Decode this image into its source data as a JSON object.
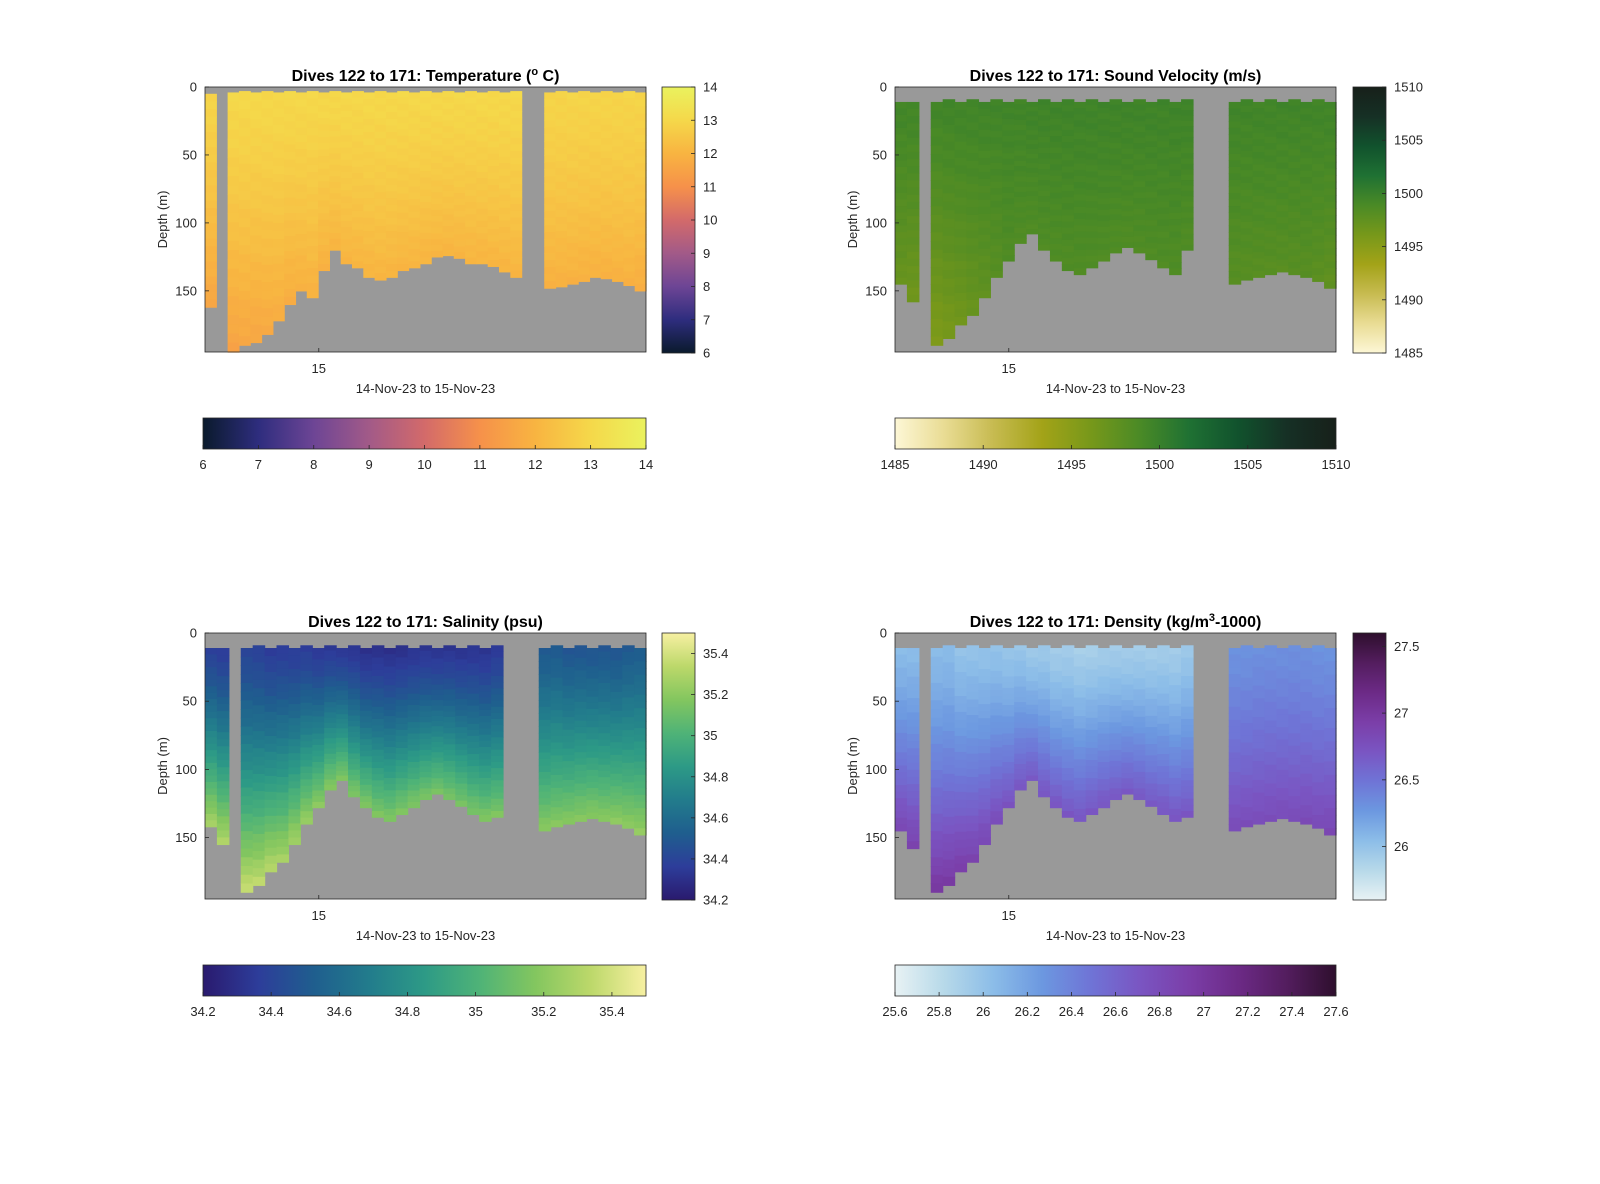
{
  "chart_data": [
    {
      "type": "heatmap",
      "title": "Dives 122 to 171: Temperature (° C)",
      "title_parts": [
        "Dives 122 to 171: Temperature (",
        "o",
        " C)"
      ],
      "xlabel": "14-Nov-23 to 15-Nov-23",
      "ylabel": "Depth (m)",
      "x_tick_labels": [
        "15"
      ],
      "y_ticks": [
        0,
        50,
        100,
        150
      ],
      "ylim": [
        0,
        195
      ],
      "colorbar_range": [
        6,
        14
      ],
      "colorbar_ticks": [
        6,
        7,
        8,
        9,
        10,
        11,
        12,
        13,
        14
      ],
      "horizontal_colorbar_ticks": [
        6,
        7,
        8,
        9,
        10,
        11,
        12,
        13,
        14
      ],
      "colormap": [
        "#0a1a2c",
        "#2e2d7e",
        "#6d4595",
        "#a25a88",
        "#d36a6a",
        "#f6914a",
        "#f8b441",
        "#f5d84a",
        "#eaf25e"
      ],
      "surface_value": 13.0,
      "bottom_value": 12.0,
      "dives": [
        {
          "top": 5,
          "bottom": 162,
          "s": 12.9,
          "b": 11.6
        },
        {
          "gap": true
        },
        {
          "top": 4,
          "bottom": 195,
          "s": 13.0,
          "b": 11.5
        },
        {
          "top": 3,
          "bottom": 190,
          "s": 13.0,
          "b": 11.6
        },
        {
          "top": 4,
          "bottom": 188,
          "s": 13.0,
          "b": 11.6
        },
        {
          "top": 3,
          "bottom": 182,
          "s": 13.0,
          "b": 11.7
        },
        {
          "top": 4,
          "bottom": 172,
          "s": 13.0,
          "b": 11.8
        },
        {
          "top": 3,
          "bottom": 160,
          "s": 13.0,
          "b": 11.8
        },
        {
          "top": 4,
          "bottom": 150,
          "s": 13.0,
          "b": 11.9
        },
        {
          "top": 3,
          "bottom": 155,
          "s": 13.0,
          "b": 11.9
        },
        {
          "top": 4,
          "bottom": 135,
          "s": 13.0,
          "b": 11.9
        },
        {
          "top": 3,
          "bottom": 120,
          "s": 13.0,
          "b": 12.0
        },
        {
          "top": 4,
          "bottom": 130,
          "s": 13.0,
          "b": 12.0
        },
        {
          "top": 3,
          "bottom": 133,
          "s": 13.0,
          "b": 12.0
        },
        {
          "top": 4,
          "bottom": 140,
          "s": 13.0,
          "b": 12.0
        },
        {
          "top": 3,
          "bottom": 142,
          "s": 13.0,
          "b": 12.0
        },
        {
          "top": 4,
          "bottom": 140,
          "s": 13.0,
          "b": 12.0
        },
        {
          "top": 3,
          "bottom": 135,
          "s": 13.0,
          "b": 12.0
        },
        {
          "top": 4,
          "bottom": 133,
          "s": 13.0,
          "b": 12.0
        },
        {
          "top": 3,
          "bottom": 130,
          "s": 13.0,
          "b": 12.0
        },
        {
          "top": 4,
          "bottom": 125,
          "s": 13.0,
          "b": 12.0
        },
        {
          "top": 3,
          "bottom": 124,
          "s": 13.0,
          "b": 12.0
        },
        {
          "top": 4,
          "bottom": 126,
          "s": 13.0,
          "b": 12.0
        },
        {
          "top": 3,
          "bottom": 130,
          "s": 13.0,
          "b": 12.0
        },
        {
          "top": 4,
          "bottom": 130,
          "s": 13.0,
          "b": 12.0
        },
        {
          "top": 3,
          "bottom": 132,
          "s": 13.0,
          "b": 12.0
        },
        {
          "top": 4,
          "bottom": 136,
          "s": 13.0,
          "b": 12.0
        },
        {
          "top": 3,
          "bottom": 140,
          "s": 13.0,
          "b": 12.0
        },
        {
          "gap": true
        },
        {
          "gap": true
        },
        {
          "top": 4,
          "bottom": 148,
          "s": 12.9,
          "b": 11.9
        },
        {
          "top": 3,
          "bottom": 147,
          "s": 12.9,
          "b": 11.9
        },
        {
          "top": 4,
          "bottom": 145,
          "s": 12.9,
          "b": 11.9
        },
        {
          "top": 3,
          "bottom": 143,
          "s": 12.9,
          "b": 11.9
        },
        {
          "top": 4,
          "bottom": 140,
          "s": 12.9,
          "b": 11.9
        },
        {
          "top": 3,
          "bottom": 141,
          "s": 12.9,
          "b": 11.9
        },
        {
          "top": 4,
          "bottom": 143,
          "s": 12.9,
          "b": 11.9
        },
        {
          "top": 3,
          "bottom": 146,
          "s": 12.9,
          "b": 11.9
        },
        {
          "top": 4,
          "bottom": 150,
          "s": 12.9,
          "b": 11.8
        }
      ]
    },
    {
      "type": "heatmap",
      "title": "Dives 122 to 171: Sound Velocity (m/s)",
      "title_parts": [
        "Dives 122 to 171: Sound Velocity (m/s)"
      ],
      "xlabel": "14-Nov-23 to 15-Nov-23",
      "ylabel": "Depth (m)",
      "x_tick_labels": [
        "15"
      ],
      "y_ticks": [
        0,
        50,
        100,
        150
      ],
      "ylim": [
        0,
        195
      ],
      "colorbar_range": [
        1485,
        1510
      ],
      "colorbar_ticks": [
        1485,
        1490,
        1495,
        1500,
        1505,
        1510
      ],
      "horizontal_colorbar_ticks": [
        1485,
        1490,
        1495,
        1500,
        1505,
        1510
      ],
      "colormap": [
        "#fdf7d6",
        "#e9dc94",
        "#c7bb51",
        "#a3a318",
        "#77981a",
        "#4a8a26",
        "#1f7133",
        "#11522d",
        "#163025",
        "#17201a"
      ],
      "dives": [
        {
          "top": 11,
          "bottom": 145,
          "s": 1499.4,
          "b": 1497.0
        },
        {
          "top": 11,
          "bottom": 158,
          "s": 1499.4,
          "b": 1496.5
        },
        {
          "gap": true
        },
        {
          "top": 11,
          "bottom": 190,
          "s": 1499.4,
          "b": 1495.5
        },
        {
          "top": 9,
          "bottom": 185,
          "s": 1499.5,
          "b": 1496.0
        },
        {
          "top": 11,
          "bottom": 175,
          "s": 1499.5,
          "b": 1496.5
        },
        {
          "top": 9,
          "bottom": 168,
          "s": 1499.5,
          "b": 1497.0
        },
        {
          "top": 11,
          "bottom": 155,
          "s": 1499.5,
          "b": 1497.5
        },
        {
          "top": 9,
          "bottom": 140,
          "s": 1499.5,
          "b": 1498.0
        },
        {
          "top": 11,
          "bottom": 128,
          "s": 1499.5,
          "b": 1498.5
        },
        {
          "top": 9,
          "bottom": 115,
          "s": 1499.5,
          "b": 1498.5
        },
        {
          "top": 11,
          "bottom": 108,
          "s": 1499.6,
          "b": 1498.5
        },
        {
          "top": 9,
          "bottom": 120,
          "s": 1499.6,
          "b": 1498.5
        },
        {
          "top": 11,
          "bottom": 128,
          "s": 1499.6,
          "b": 1498.5
        },
        {
          "top": 9,
          "bottom": 135,
          "s": 1499.6,
          "b": 1498.5
        },
        {
          "top": 11,
          "bottom": 138,
          "s": 1499.6,
          "b": 1498.5
        },
        {
          "top": 9,
          "bottom": 133,
          "s": 1499.6,
          "b": 1498.5
        },
        {
          "top": 11,
          "bottom": 128,
          "s": 1499.6,
          "b": 1498.5
        },
        {
          "top": 9,
          "bottom": 122,
          "s": 1499.6,
          "b": 1498.5
        },
        {
          "top": 11,
          "bottom": 118,
          "s": 1499.6,
          "b": 1498.5
        },
        {
          "top": 9,
          "bottom": 122,
          "s": 1499.6,
          "b": 1498.5
        },
        {
          "top": 11,
          "bottom": 127,
          "s": 1499.6,
          "b": 1498.5
        },
        {
          "top": 9,
          "bottom": 133,
          "s": 1499.6,
          "b": 1498.5
        },
        {
          "top": 11,
          "bottom": 138,
          "s": 1499.6,
          "b": 1498.5
        },
        {
          "top": 9,
          "bottom": 120,
          "s": 1499.6,
          "b": 1498.5
        },
        {
          "gap": true
        },
        {
          "gap": true
        },
        {
          "gap": true
        },
        {
          "top": 11,
          "bottom": 145,
          "s": 1499.5,
          "b": 1498.0
        },
        {
          "top": 9,
          "bottom": 142,
          "s": 1499.5,
          "b": 1498.0
        },
        {
          "top": 11,
          "bottom": 140,
          "s": 1499.5,
          "b": 1498.0
        },
        {
          "top": 9,
          "bottom": 138,
          "s": 1499.5,
          "b": 1498.0
        },
        {
          "top": 11,
          "bottom": 136,
          "s": 1499.5,
          "b": 1498.0
        },
        {
          "top": 9,
          "bottom": 138,
          "s": 1499.5,
          "b": 1498.0
        },
        {
          "top": 11,
          "bottom": 140,
          "s": 1499.5,
          "b": 1498.0
        },
        {
          "top": 9,
          "bottom": 143,
          "s": 1499.5,
          "b": 1497.8
        },
        {
          "top": 11,
          "bottom": 148,
          "s": 1499.5,
          "b": 1497.5
        }
      ]
    },
    {
      "type": "heatmap",
      "title": "Dives 122 to 171: Salinity (psu)",
      "title_parts": [
        "Dives 122 to 171: Salinity (psu)"
      ],
      "xlabel": "14-Nov-23 to 15-Nov-23",
      "ylabel": "Depth (m)",
      "x_tick_labels": [
        "15"
      ],
      "y_ticks": [
        0,
        50,
        100,
        150
      ],
      "ylim": [
        0,
        195
      ],
      "colorbar_range": [
        34.2,
        35.5
      ],
      "colorbar_ticks": [
        34.2,
        34.4,
        34.6,
        34.8,
        35,
        35.2,
        35.4
      ],
      "colorbar_tick_labels": [
        "34.2",
        "34.4",
        "34.6",
        "34.8",
        "35",
        "35.2",
        "35.4"
      ],
      "colormap": [
        "#2a1a6e",
        "#2d3d9a",
        "#1f5e8e",
        "#227c8c",
        "#2d9a86",
        "#4fb377",
        "#83c65f",
        "#bcd86a",
        "#f7f0a2"
      ],
      "dives": [
        {
          "top": 11,
          "bottom": 142,
          "s": 34.38,
          "b": 35.3
        },
        {
          "top": 11,
          "bottom": 155,
          "s": 34.36,
          "b": 35.32
        },
        {
          "gap": true
        },
        {
          "top": 11,
          "bottom": 190,
          "s": 34.4,
          "b": 35.38
        },
        {
          "top": 9,
          "bottom": 185,
          "s": 34.38,
          "b": 35.36
        },
        {
          "top": 11,
          "bottom": 175,
          "s": 34.36,
          "b": 35.34
        },
        {
          "top": 9,
          "bottom": 168,
          "s": 34.36,
          "b": 35.3
        },
        {
          "top": 11,
          "bottom": 155,
          "s": 34.36,
          "b": 35.28
        },
        {
          "top": 9,
          "bottom": 140,
          "s": 34.36,
          "b": 35.25
        },
        {
          "top": 11,
          "bottom": 128,
          "s": 34.34,
          "b": 35.22
        },
        {
          "top": 9,
          "bottom": 115,
          "s": 34.34,
          "b": 35.2
        },
        {
          "top": 11,
          "bottom": 108,
          "s": 34.34,
          "b": 35.18
        },
        {
          "top": 9,
          "bottom": 120,
          "s": 34.32,
          "b": 35.18
        },
        {
          "top": 11,
          "bottom": 128,
          "s": 34.3,
          "b": 35.18
        },
        {
          "top": 9,
          "bottom": 135,
          "s": 34.3,
          "b": 35.18
        },
        {
          "top": 11,
          "bottom": 138,
          "s": 34.3,
          "b": 35.18
        },
        {
          "top": 9,
          "bottom": 133,
          "s": 34.3,
          "b": 35.18
        },
        {
          "top": 11,
          "bottom": 128,
          "s": 34.32,
          "b": 35.18
        },
        {
          "top": 9,
          "bottom": 122,
          "s": 34.32,
          "b": 35.16
        },
        {
          "top": 11,
          "bottom": 118,
          "s": 34.32,
          "b": 35.16
        },
        {
          "top": 9,
          "bottom": 122,
          "s": 34.32,
          "b": 35.16
        },
        {
          "top": 11,
          "bottom": 127,
          "s": 34.32,
          "b": 35.16
        },
        {
          "top": 9,
          "bottom": 133,
          "s": 34.32,
          "b": 35.16
        },
        {
          "top": 11,
          "bottom": 138,
          "s": 34.32,
          "b": 35.18
        },
        {
          "top": 9,
          "bottom": 135,
          "s": 34.34,
          "b": 35.18
        },
        {
          "gap": true
        },
        {
          "gap": true
        },
        {
          "gap": true
        },
        {
          "top": 11,
          "bottom": 145,
          "s": 34.5,
          "b": 35.2
        },
        {
          "top": 9,
          "bottom": 142,
          "s": 34.5,
          "b": 35.2
        },
        {
          "top": 11,
          "bottom": 140,
          "s": 34.48,
          "b": 35.2
        },
        {
          "top": 9,
          "bottom": 138,
          "s": 34.48,
          "b": 35.2
        },
        {
          "top": 11,
          "bottom": 136,
          "s": 34.48,
          "b": 35.2
        },
        {
          "top": 9,
          "bottom": 138,
          "s": 34.48,
          "b": 35.2
        },
        {
          "top": 11,
          "bottom": 140,
          "s": 34.48,
          "b": 35.22
        },
        {
          "top": 9,
          "bottom": 143,
          "s": 34.5,
          "b": 35.22
        },
        {
          "top": 11,
          "bottom": 148,
          "s": 34.52,
          "b": 35.24
        }
      ]
    },
    {
      "type": "heatmap",
      "title": "Dives 122 to 171: Density (kg/m³-1000)",
      "title_parts": [
        "Dives 122 to 171: Density (kg/m",
        "3",
        "-1000)"
      ],
      "xlabel": "14-Nov-23 to 15-Nov-23",
      "ylabel": "Depth (m)",
      "x_tick_labels": [
        "15"
      ],
      "y_ticks": [
        0,
        50,
        100,
        150
      ],
      "ylim": [
        0,
        195
      ],
      "colorbar_range": [
        25.6,
        27.6
      ],
      "colorbar_ticks": [
        26,
        26.5,
        27,
        27.5
      ],
      "horizontal_colorbar_ticks": [
        25.6,
        25.8,
        26,
        26.2,
        26.4,
        26.6,
        26.8,
        27,
        27.2,
        27.4,
        27.6
      ],
      "colormap": [
        "#e8f2f4",
        "#b7d9e9",
        "#8cbde8",
        "#6c98e0",
        "#6f74d6",
        "#7a55c2",
        "#7b3ea8",
        "#6c2a86",
        "#531d5e",
        "#2e0f2d"
      ],
      "dives": [
        {
          "top": 11,
          "bottom": 145,
          "s": 26.05,
          "b": 26.85
        },
        {
          "top": 11,
          "bottom": 158,
          "s": 26.05,
          "b": 26.9
        },
        {
          "gap": true
        },
        {
          "top": 11,
          "bottom": 190,
          "s": 26.05,
          "b": 27.0
        },
        {
          "top": 9,
          "bottom": 185,
          "s": 26.05,
          "b": 26.98
        },
        {
          "top": 11,
          "bottom": 175,
          "s": 26.0,
          "b": 26.95
        },
        {
          "top": 9,
          "bottom": 168,
          "s": 26.0,
          "b": 26.9
        },
        {
          "top": 11,
          "bottom": 155,
          "s": 26.0,
          "b": 26.85
        },
        {
          "top": 9,
          "bottom": 140,
          "s": 26.0,
          "b": 26.8
        },
        {
          "top": 11,
          "bottom": 128,
          "s": 25.98,
          "b": 26.75
        },
        {
          "top": 9,
          "bottom": 115,
          "s": 25.98,
          "b": 26.72
        },
        {
          "top": 11,
          "bottom": 108,
          "s": 25.95,
          "b": 26.7
        },
        {
          "top": 9,
          "bottom": 120,
          "s": 25.95,
          "b": 26.72
        },
        {
          "top": 11,
          "bottom": 128,
          "s": 25.92,
          "b": 26.72
        },
        {
          "top": 9,
          "bottom": 135,
          "s": 25.92,
          "b": 26.72
        },
        {
          "top": 11,
          "bottom": 138,
          "s": 25.9,
          "b": 26.72
        },
        {
          "top": 9,
          "bottom": 133,
          "s": 25.9,
          "b": 26.72
        },
        {
          "top": 11,
          "bottom": 128,
          "s": 25.92,
          "b": 26.72
        },
        {
          "top": 9,
          "bottom": 122,
          "s": 25.92,
          "b": 26.7
        },
        {
          "top": 11,
          "bottom": 118,
          "s": 25.92,
          "b": 26.7
        },
        {
          "top": 9,
          "bottom": 122,
          "s": 25.92,
          "b": 26.7
        },
        {
          "top": 11,
          "bottom": 127,
          "s": 25.92,
          "b": 26.7
        },
        {
          "top": 9,
          "bottom": 133,
          "s": 25.92,
          "b": 26.72
        },
        {
          "top": 11,
          "bottom": 138,
          "s": 25.92,
          "b": 26.72
        },
        {
          "top": 9,
          "bottom": 135,
          "s": 25.95,
          "b": 26.72
        },
        {
          "gap": true
        },
        {
          "gap": true
        },
        {
          "gap": true
        },
        {
          "top": 11,
          "bottom": 145,
          "s": 26.3,
          "b": 26.8
        },
        {
          "top": 9,
          "bottom": 142,
          "s": 26.3,
          "b": 26.8
        },
        {
          "top": 11,
          "bottom": 140,
          "s": 26.32,
          "b": 26.8
        },
        {
          "top": 9,
          "bottom": 138,
          "s": 26.32,
          "b": 26.8
        },
        {
          "top": 11,
          "bottom": 136,
          "s": 26.32,
          "b": 26.8
        },
        {
          "top": 9,
          "bottom": 138,
          "s": 26.32,
          "b": 26.8
        },
        {
          "top": 11,
          "bottom": 140,
          "s": 26.32,
          "b": 26.82
        },
        {
          "top": 9,
          "bottom": 143,
          "s": 26.3,
          "b": 26.82
        },
        {
          "top": 11,
          "bottom": 148,
          "s": 26.3,
          "b": 26.85
        }
      ]
    }
  ]
}
